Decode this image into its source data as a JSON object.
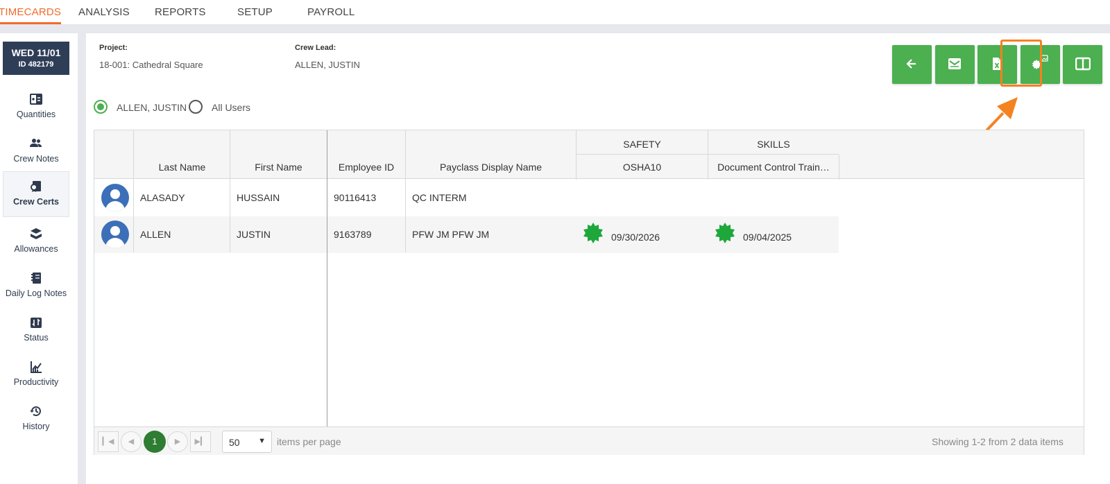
{
  "nav": {
    "tabs": [
      "TIMECARDS",
      "ANALYSIS",
      "REPORTS",
      "SETUP",
      "PAYROLL"
    ],
    "active": "TIMECARDS"
  },
  "timecard": {
    "date": "WED 11/01",
    "id": "ID 482179"
  },
  "sidebar": {
    "items": [
      {
        "label": "Quantities",
        "icon": "quantities-icon"
      },
      {
        "label": "Crew Notes",
        "icon": "crew-icon"
      },
      {
        "label": "Crew Certs",
        "icon": "cert-icon",
        "active": true
      },
      {
        "label": "Allowances",
        "icon": "allowance-icon"
      },
      {
        "label": "Daily Log Notes",
        "icon": "notebook-icon"
      },
      {
        "label": "Status",
        "icon": "status-icon"
      },
      {
        "label": "Productivity",
        "icon": "chart-icon"
      },
      {
        "label": "History",
        "icon": "history-icon"
      }
    ]
  },
  "header": {
    "project_label": "Project:",
    "project_value": "18-001: Cathedral Square",
    "crewlead_label": "Crew Lead:",
    "crewlead_value": "ALLEN, JUSTIN"
  },
  "actions": {
    "buttons": [
      "back-arrow-icon",
      "email-icon",
      "excel-export-icon",
      "cert-image-icon",
      "split-view-icon"
    ],
    "button_color": "#4caf50",
    "highlight_color": "#f58220"
  },
  "filter": {
    "options": [
      "ALLEN, JUSTIN",
      "All Users"
    ],
    "selected": "ALLEN, JUSTIN"
  },
  "grid": {
    "headers": {
      "last_name": "Last Name",
      "first_name": "First Name",
      "employee_id": "Employee ID",
      "payclass": "Payclass Display Name",
      "group_safety": "SAFETY",
      "group_skills": "SKILLS",
      "osha": "OSHA10",
      "doc_control": "Document Control Train…"
    },
    "rows": [
      {
        "last": "ALASADY",
        "first": "HUSSAIN",
        "emp_id": "90116413",
        "payclass": "QC INTERM",
        "osha": "",
        "doc": ""
      },
      {
        "last": "ALLEN",
        "first": "JUSTIN",
        "emp_id": "9163789",
        "payclass": "PFW JM PFW JM",
        "osha": "09/30/2026",
        "doc": "09/04/2025"
      }
    ]
  },
  "pager": {
    "current_page": "1",
    "page_size": "50",
    "items_label": "items per page",
    "summary": "Showing 1-2 from 2 data items"
  }
}
